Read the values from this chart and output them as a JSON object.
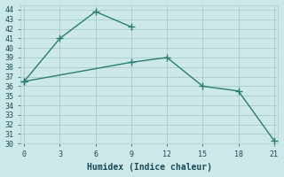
{
  "xlabel": "Humidex (Indice chaleur)",
  "line1_x": [
    0,
    3,
    6,
    9
  ],
  "line1_y": [
    36.5,
    41.0,
    43.8,
    42.2
  ],
  "line2_x": [
    0,
    9,
    12,
    15,
    18,
    21
  ],
  "line2_y": [
    36.5,
    38.5,
    39.0,
    36.0,
    35.5,
    30.3
  ],
  "line_color": "#2a7d72",
  "bg_color": "#cde8e8",
  "grid_color": "#aacfcf",
  "xlim": [
    -0.3,
    21.3
  ],
  "ylim": [
    30,
    44.5
  ],
  "xticks": [
    0,
    3,
    6,
    9,
    12,
    15,
    18,
    21
  ],
  "yticks": [
    30,
    31,
    32,
    33,
    34,
    35,
    36,
    37,
    38,
    39,
    40,
    41,
    42,
    43,
    44
  ],
  "font_color": "#1a4a5a",
  "marker": "+",
  "markersize": 6,
  "linewidth": 1.0,
  "xlabel_fontsize": 7,
  "tick_fontsize": 6
}
